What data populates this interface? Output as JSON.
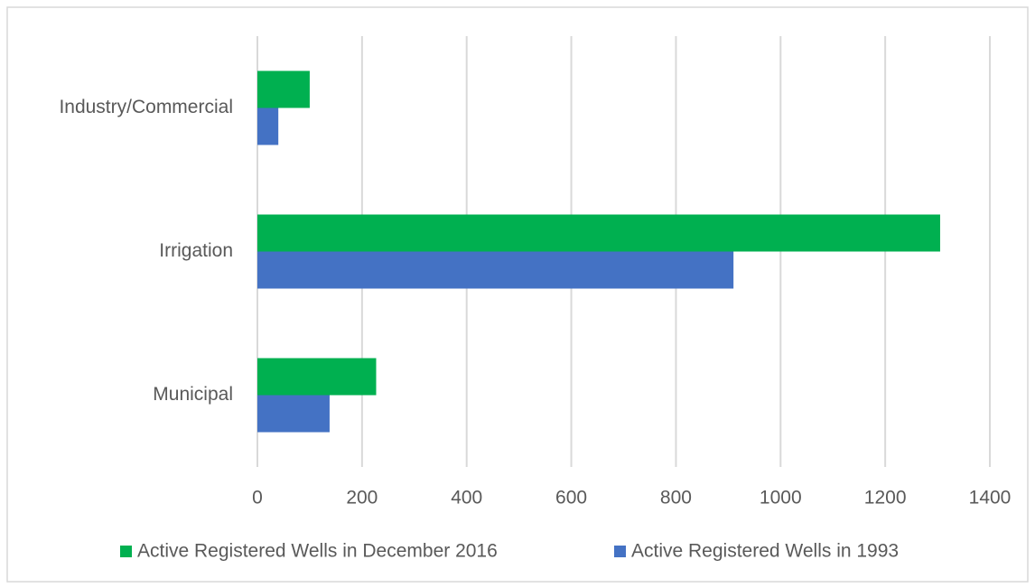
{
  "chart_data": {
    "type": "hbar",
    "categories": [
      "Industry/Commercial",
      "Irrigation",
      "Municipal"
    ],
    "series": [
      {
        "name": "Active Registered Wells in December 2016",
        "color": "#00b050",
        "values": [
          100,
          1305,
          227
        ]
      },
      {
        "name": "Active Registered Wells in 1993",
        "color": "#4472c4",
        "values": [
          40,
          910,
          138
        ]
      }
    ],
    "xlim": [
      0,
      1400
    ],
    "xticks": [
      0,
      200,
      400,
      600,
      800,
      1000,
      1200,
      1400
    ],
    "grid": true,
    "legend": "bottom"
  }
}
